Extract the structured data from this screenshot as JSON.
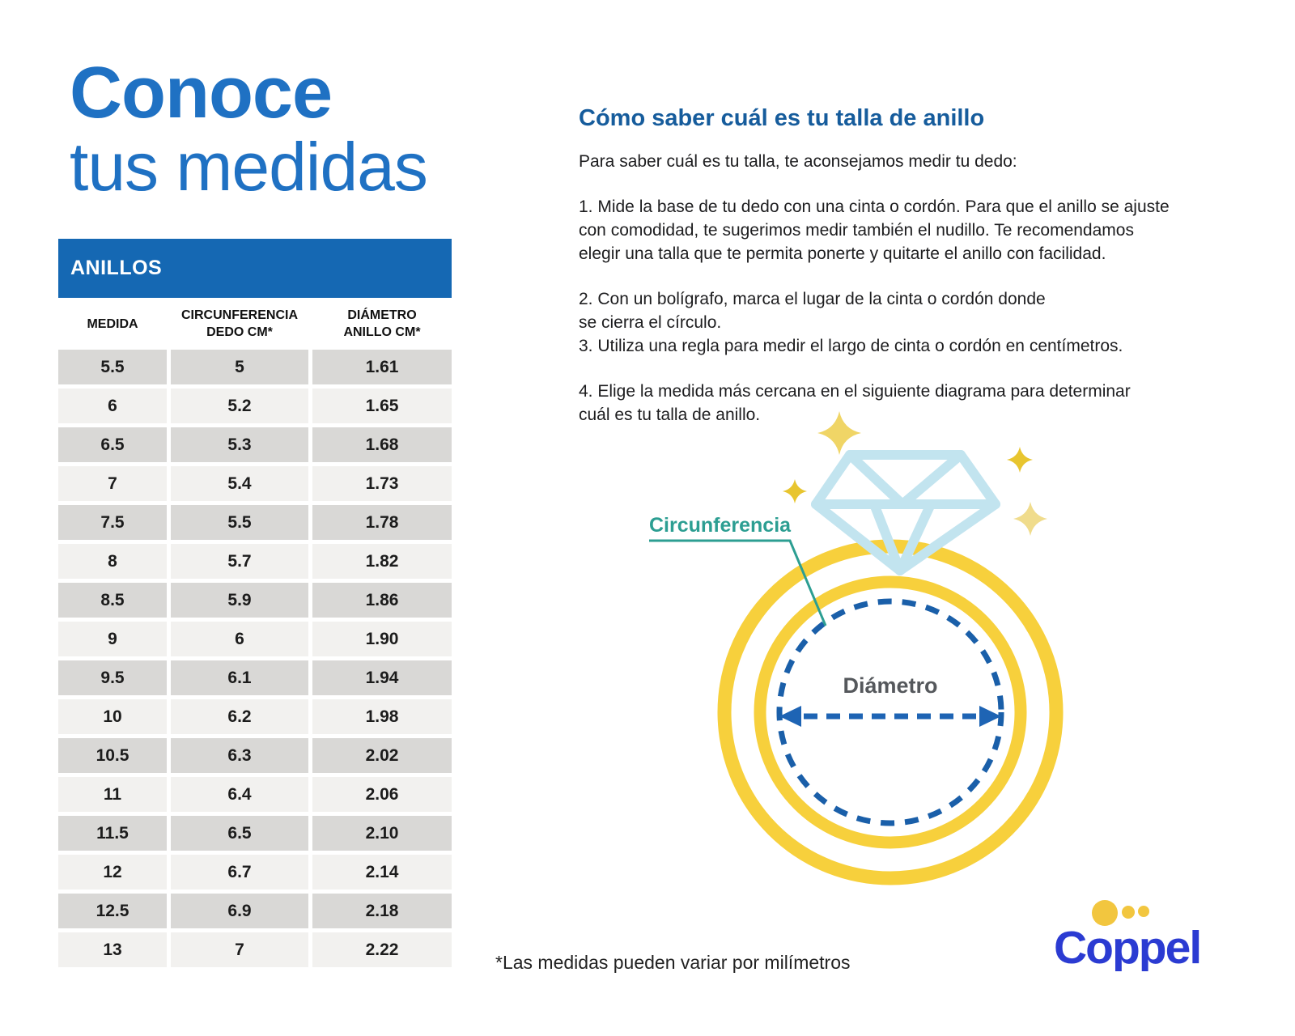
{
  "left": {
    "title_line1": "Conoce",
    "title_line2": "tus medidas",
    "table": {
      "banner": "ANILLOS",
      "columns": [
        "MEDIDA",
        "CIRCUNFERENCIA\nDEDO CM*",
        "DIÁMETRO\nANILLO CM*"
      ],
      "rows": [
        [
          "5.5",
          "5",
          "1.61"
        ],
        [
          "6",
          "5.2",
          "1.65"
        ],
        [
          "6.5",
          "5.3",
          "1.68"
        ],
        [
          "7",
          "5.4",
          "1.73"
        ],
        [
          "7.5",
          "5.5",
          "1.78"
        ],
        [
          "8",
          "5.7",
          "1.82"
        ],
        [
          "8.5",
          "5.9",
          "1.86"
        ],
        [
          "9",
          "6",
          "1.90"
        ],
        [
          "9.5",
          "6.1",
          "1.94"
        ],
        [
          "10",
          "6.2",
          "1.98"
        ],
        [
          "10.5",
          "6.3",
          "2.02"
        ],
        [
          "11",
          "6.4",
          "2.06"
        ],
        [
          "11.5",
          "6.5",
          "2.10"
        ],
        [
          "12",
          "6.7",
          "2.14"
        ],
        [
          "12.5",
          "6.9",
          "2.18"
        ],
        [
          "13",
          "7",
          "2.22"
        ]
      ]
    }
  },
  "right": {
    "heading": "Cómo saber cuál es tu talla de anillo",
    "intro": "Para saber cuál es tu talla, te aconsejamos medir tu dedo:",
    "steps": [
      "1. Mide la base de tu dedo con una cinta o cordón. Para que el anillo se ajuste\ncon comodidad, te sugerimos medir también el nudillo. Te recomendamos\nelegir una talla que te permita ponerte y quitarte el anillo con facilidad.",
      "2. Con un bolígrafo, marca el lugar de la cinta o cordón donde\nse cierra el círculo.",
      "3. Utiliza una regla para medir el largo de cinta o cordón en centímetros.",
      "4. Elige la medida más cercana en el siguiente diagrama para determinar\ncuál es tu talla de anillo."
    ],
    "footnote": "*Las medidas pueden variar por milímetros"
  },
  "diagram": {
    "label_circumference": "Circunferencia",
    "label_diameter": "Diámetro",
    "colors": {
      "ring_yellow": "#f7d03c",
      "dashed_blue": "#1a5fa9",
      "diamond_blue": "#c2e4ef",
      "teal_label": "#2c9e92",
      "sparkle_gold": "#e8c52f",
      "sparkle_light": "#f0dc8c"
    }
  },
  "logo": {
    "text": "Coppel",
    "colors": {
      "text_blue": "#2b3bd2",
      "dots_yellow": "#f2c63f"
    }
  },
  "page": {
    "colors": {
      "title_blue": "#1f71c3",
      "banner_blue": "#1568b3",
      "heading_blue": "#165c9c",
      "row_dark": "#d9d8d6",
      "row_light": "#f2f1ef"
    }
  }
}
